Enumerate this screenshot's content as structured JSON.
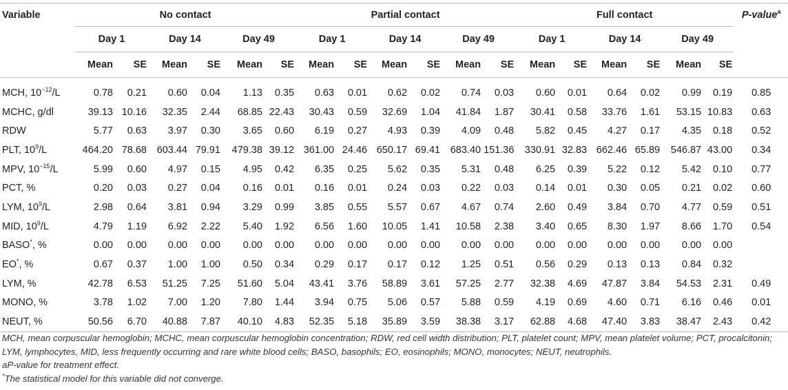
{
  "header": {
    "variable": "Variable",
    "groups": [
      "No contact",
      "Partial contact",
      "Full contact"
    ],
    "days": [
      "Day 1",
      "Day 14",
      "Day 49"
    ],
    "mean": "Mean",
    "se": "SE",
    "pvalue": "P-value",
    "pvalue_sup": "a"
  },
  "rows": [
    {
      "label": "MCH, 10",
      "sup": "−12",
      "suffix": "/L",
      "values": [
        "0.78",
        "0.21",
        "0.60",
        "0.04",
        "1.13",
        "0.35",
        "0.63",
        "0.01",
        "0.62",
        "0.02",
        "0.74",
        "0.03",
        "0.60",
        "0.01",
        "0.64",
        "0.02",
        "0.99",
        "0.19"
      ],
      "p": "0.85"
    },
    {
      "label": "MCHC, g/dl",
      "sup": "",
      "suffix": "",
      "values": [
        "39.13",
        "10.16",
        "32.35",
        "2.44",
        "68.85",
        "22.43",
        "30.43",
        "0.59",
        "32.69",
        "1.04",
        "41.84",
        "1.87",
        "30.41",
        "0.58",
        "33.76",
        "1.61",
        "53.15",
        "10.83"
      ],
      "p": "0.63"
    },
    {
      "label": "RDW",
      "sup": "",
      "suffix": "",
      "values": [
        "5.77",
        "0.63",
        "3.97",
        "0.30",
        "3.65",
        "0.60",
        "6.19",
        "0.27",
        "4.93",
        "0.39",
        "4.09",
        "0.48",
        "5.82",
        "0.45",
        "4.27",
        "0.17",
        "4.35",
        "0.18"
      ],
      "p": "0.52"
    },
    {
      "label": "PLT, 10",
      "sup": "9",
      "suffix": "/L",
      "values": [
        "464.20",
        "78.68",
        "603.44",
        "79.91",
        "479.38",
        "39.12",
        "361.00",
        "24.46",
        "650.17",
        "69.41",
        "683.40",
        "151.36",
        "330.91",
        "32.83",
        "662.46",
        "65.89",
        "546.87",
        "43.00"
      ],
      "p": "0.34"
    },
    {
      "label": "MPV, 10",
      "sup": "−15",
      "suffix": "/L",
      "values": [
        "5.99",
        "0.60",
        "4.97",
        "0.15",
        "4.95",
        "0.42",
        "6.35",
        "0.25",
        "5.62",
        "0.35",
        "5.31",
        "0.48",
        "6.25",
        "0.39",
        "5.22",
        "0.12",
        "5.42",
        "0.10"
      ],
      "p": "0.77"
    },
    {
      "label": "PCT, %",
      "sup": "",
      "suffix": "",
      "values": [
        "0.20",
        "0.03",
        "0.27",
        "0.04",
        "0.16",
        "0.01",
        "0.16",
        "0.01",
        "0.24",
        "0.03",
        "0.22",
        "0.03",
        "0.14",
        "0.01",
        "0.30",
        "0.05",
        "0.21",
        "0.02"
      ],
      "p": "0.60"
    },
    {
      "label": "LYM, 10",
      "sup": "9",
      "suffix": "/L",
      "values": [
        "2.98",
        "0.64",
        "3.81",
        "0.94",
        "3.29",
        "0.99",
        "3.85",
        "0.55",
        "5.57",
        "0.67",
        "4.67",
        "0.74",
        "2.60",
        "0.49",
        "3.84",
        "0.70",
        "4.77",
        "0.59"
      ],
      "p": "0.51"
    },
    {
      "label": "MID, 10",
      "sup": "9",
      "suffix": "/L",
      "values": [
        "4.79",
        "1.19",
        "6.92",
        "2.22",
        "5.40",
        "1.92",
        "6.56",
        "1.60",
        "10.05",
        "1.41",
        "10.58",
        "2.38",
        "3.40",
        "0.65",
        "8.30",
        "1.97",
        "8.66",
        "1.70"
      ],
      "p": "0.54"
    },
    {
      "label": "BASO",
      "sup": "*",
      "suffix": ", %",
      "values": [
        "0.00",
        "0.00",
        "0.00",
        "0.00",
        "0.00",
        "0.00",
        "0.00",
        "0.00",
        "0.00",
        "0.00",
        "0.00",
        "0.00",
        "0.00",
        "0.00",
        "0.00",
        "0.00",
        "0.00",
        "0.00"
      ],
      "p": ""
    },
    {
      "label": "EO",
      "sup": "*",
      "suffix": ", %",
      "values": [
        "0.67",
        "0.37",
        "1.00",
        "1.00",
        "0.50",
        "0.34",
        "0.29",
        "0.17",
        "0.17",
        "0.12",
        "1.25",
        "0.51",
        "0.56",
        "0.29",
        "0.13",
        "0.13",
        "0.84",
        "0.32"
      ],
      "p": ""
    },
    {
      "label": "LYM, %",
      "sup": "",
      "suffix": "",
      "values": [
        "42.78",
        "6.53",
        "51.25",
        "7.25",
        "51.60",
        "5.04",
        "43.41",
        "3.76",
        "58.89",
        "3.61",
        "57.25",
        "2.77",
        "32.38",
        "4.69",
        "47.87",
        "3.84",
        "54.53",
        "2.31"
      ],
      "p": "0.49"
    },
    {
      "label": "MONO, %",
      "sup": "",
      "suffix": "",
      "values": [
        "3.78",
        "1.02",
        "7.00",
        "1.20",
        "7.80",
        "1.44",
        "3.94",
        "0.75",
        "5.06",
        "0.57",
        "5.88",
        "0.59",
        "4.19",
        "0.69",
        "4.60",
        "0.71",
        "6.16",
        "0.46"
      ],
      "p": "0.01"
    },
    {
      "label": "NEUT, %",
      "sup": "",
      "suffix": "",
      "values": [
        "50.56",
        "6.70",
        "40.88",
        "7.87",
        "40.10",
        "4.83",
        "52.35",
        "5.18",
        "35.89",
        "3.59",
        "38.38",
        "3.17",
        "62.88",
        "4.68",
        "47.40",
        "3.83",
        "38.47",
        "2.43"
      ],
      "p": "0.42"
    }
  ],
  "footnotes": {
    "abbreviations": "MCH, mean corpuscular hemoglobin; MCHC, mean corpuscular hemoglobin concentration; RDW, red cell width distribution; PLT, platelet count; MPV, mean platelet volume; PCT, procalcitonin; LYM, lymphocytes, MID, less frequently occurring and rare white blood cells; BASO, basophils; EO, eosinophils; MONO, monocytes; NEUT, neutrophils.",
    "a_note": "aP-value for treatment effect.",
    "star_sup": "*",
    "star_note": "The statistical model for this variable did not converge."
  }
}
